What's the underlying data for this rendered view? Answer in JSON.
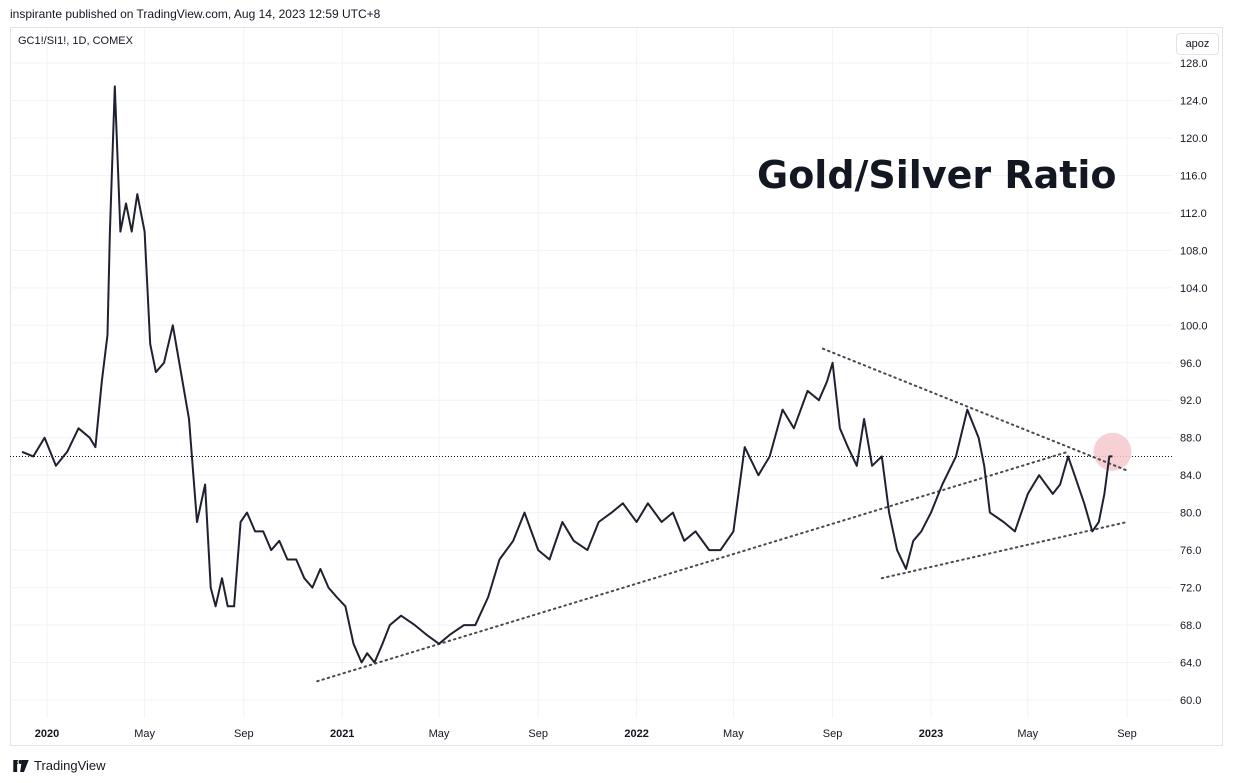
{
  "header": {
    "publish_text": "inspirante published on TradingView.com, Aug 14, 2023 12:59 UTC+8"
  },
  "symbol_label": "GC1!/SI1!, 1D, COMEX",
  "scale_button": "apoz",
  "footer": {
    "brand": "TradingView"
  },
  "chart_data": {
    "type": "line",
    "title": "Gold/Silver Ratio",
    "ylim": [
      58,
      130
    ],
    "y_ticks": [
      "128.0",
      "124.0",
      "120.0",
      "116.0",
      "112.0",
      "108.0",
      "104.0",
      "100.0",
      "96.0",
      "92.0",
      "88.0",
      "84.0",
      "80.0",
      "76.0",
      "72.0",
      "68.0",
      "64.0",
      "60.0"
    ],
    "x_ticks": [
      "2020",
      "May",
      "Sep",
      "2021",
      "May",
      "Sep",
      "2022",
      "May",
      "Sep",
      "2023",
      "May",
      "Sep"
    ],
    "x_tick_bold": [
      true,
      false,
      false,
      true,
      false,
      false,
      true,
      false,
      false,
      true,
      false,
      false
    ],
    "last_price_level": 86.0,
    "series": [
      {
        "x": [
          "2019-12-01",
          "2019-12-15",
          "2019-12-29",
          "2020-01-12",
          "2020-01-26",
          "2020-02-09",
          "2020-02-23",
          "2020-03-01",
          "2020-03-09",
          "2020-03-16",
          "2020-03-19",
          "2020-03-25",
          "2020-04-01",
          "2020-04-08",
          "2020-04-15",
          "2020-04-22",
          "2020-05-01",
          "2020-05-08",
          "2020-05-15",
          "2020-05-25",
          "2020-06-05",
          "2020-06-15",
          "2020-06-25",
          "2020-07-05",
          "2020-07-15",
          "2020-07-22",
          "2020-07-28",
          "2020-08-05",
          "2020-08-12",
          "2020-08-20",
          "2020-08-28",
          "2020-09-05",
          "2020-09-15",
          "2020-09-25",
          "2020-10-05",
          "2020-10-15",
          "2020-10-25",
          "2020-11-05",
          "2020-11-15",
          "2020-11-25",
          "2020-12-05",
          "2020-12-15",
          "2020-12-25",
          "2021-01-05",
          "2021-01-15",
          "2021-01-25",
          "2021-02-01",
          "2021-02-10",
          "2021-02-20",
          "2021-03-01",
          "2021-03-15",
          "2021-04-01",
          "2021-04-15",
          "2021-05-01",
          "2021-05-15",
          "2021-06-01",
          "2021-06-15",
          "2021-07-01",
          "2021-07-15",
          "2021-08-01",
          "2021-08-15",
          "2021-09-01",
          "2021-09-15",
          "2021-10-01",
          "2021-10-15",
          "2021-11-01",
          "2021-11-15",
          "2021-12-01",
          "2021-12-15",
          "2022-01-01",
          "2022-01-15",
          "2022-02-01",
          "2022-02-15",
          "2022-03-01",
          "2022-03-15",
          "2022-04-01",
          "2022-04-15",
          "2022-05-01",
          "2022-05-15",
          "2022-06-01",
          "2022-06-15",
          "2022-07-01",
          "2022-07-15",
          "2022-08-01",
          "2022-08-15",
          "2022-08-25",
          "2022-09-01",
          "2022-09-10",
          "2022-09-20",
          "2022-10-01",
          "2022-10-10",
          "2022-10-20",
          "2022-11-01",
          "2022-11-10",
          "2022-11-20",
          "2022-12-01",
          "2022-12-10",
          "2022-12-20",
          "2023-01-01",
          "2023-01-15",
          "2023-02-01",
          "2023-02-15",
          "2023-03-01",
          "2023-03-08",
          "2023-03-15",
          "2023-04-01",
          "2023-04-15",
          "2023-05-01",
          "2023-05-15",
          "2023-06-01",
          "2023-06-10",
          "2023-06-20",
          "2023-06-28",
          "2023-07-10",
          "2023-07-20",
          "2023-07-28",
          "2023-08-04",
          "2023-08-10",
          "2023-08-14"
        ],
        "y": [
          86.5,
          86,
          88,
          85,
          86.5,
          89,
          88,
          87,
          94,
          99,
          110,
          125.5,
          110,
          113,
          110,
          114,
          110,
          98,
          95,
          96,
          100,
          95,
          90,
          79,
          83,
          72,
          70,
          73,
          70,
          70,
          79,
          80,
          78,
          78,
          76,
          77,
          75,
          75,
          73,
          72,
          74,
          72,
          71,
          70,
          66,
          64,
          65,
          64,
          66,
          68,
          69,
          68,
          67,
          66,
          67,
          68,
          68,
          71,
          75,
          77,
          80,
          76,
          75,
          79,
          77,
          76,
          79,
          80,
          81,
          79,
          81,
          79,
          80,
          77,
          78,
          76,
          76,
          78,
          87,
          84,
          86,
          91,
          89,
          93,
          92,
          94,
          96,
          89,
          87,
          85,
          90,
          85,
          86,
          80,
          76,
          74,
          77,
          78,
          80,
          83,
          86,
          91,
          88,
          85,
          80,
          79,
          78,
          82,
          84,
          82,
          83,
          86,
          84,
          81,
          78,
          79,
          82,
          86,
          86
        ]
      }
    ],
    "trendlines": [
      {
        "style": "dotted",
        "points": [
          [
            "2020-12-01",
            62.0
          ],
          [
            "2023-06-20",
            86.5
          ]
        ]
      },
      {
        "style": "dotted",
        "points": [
          [
            "2022-08-20",
            97.5
          ],
          [
            "2023-09-01",
            84.5
          ]
        ]
      },
      {
        "style": "dotted",
        "points": [
          [
            "2022-11-01",
            73.0
          ],
          [
            "2023-09-01",
            79.0
          ]
        ]
      }
    ],
    "highlight": {
      "x": "2023-08-14",
      "y": 86.5,
      "color": "#f6c8cc"
    }
  }
}
